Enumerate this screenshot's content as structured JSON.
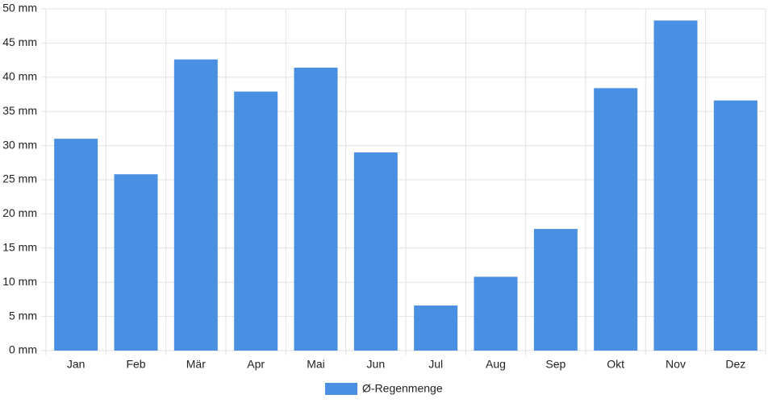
{
  "chart_data": {
    "type": "bar",
    "categories": [
      "Jan",
      "Feb",
      "Mär",
      "Apr",
      "Mai",
      "Jun",
      "Jul",
      "Aug",
      "Sep",
      "Okt",
      "Nov",
      "Dez"
    ],
    "series": [
      {
        "name": "Ø-Regenmenge",
        "color": "#4a90e2",
        "values": [
          31.0,
          25.8,
          42.6,
          37.9,
          41.4,
          29.0,
          6.6,
          10.8,
          17.8,
          38.4,
          48.3,
          36.6
        ]
      }
    ],
    "ylim": [
      0,
      50
    ],
    "yticks": [
      {
        "value": 0,
        "label": "0 mm"
      },
      {
        "value": 5,
        "label": "5 mm"
      },
      {
        "value": 10,
        "label": "10 mm"
      },
      {
        "value": 15,
        "label": "15 mm"
      },
      {
        "value": 20,
        "label": "20 mm"
      },
      {
        "value": 25,
        "label": "25 mm"
      },
      {
        "value": 30,
        "label": "30 mm"
      },
      {
        "value": 35,
        "label": "35 mm"
      },
      {
        "value": 40,
        "label": "40 mm"
      },
      {
        "value": 45,
        "label": "45 mm"
      },
      {
        "value": 50,
        "label": "50 mm"
      }
    ],
    "grid": true,
    "legend": "bottom"
  }
}
